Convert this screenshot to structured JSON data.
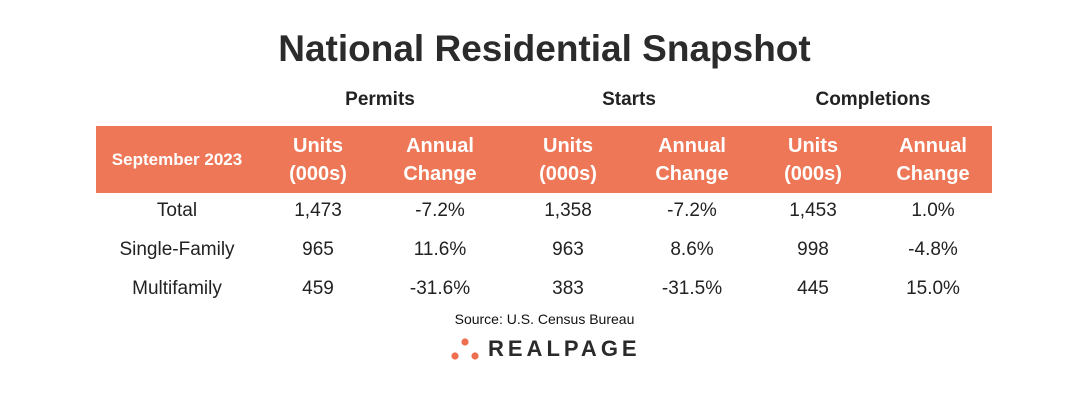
{
  "title": "National Residential Snapshot",
  "accent_color": "#ED7757",
  "chart_data": {
    "type": "table",
    "title": "National Residential Snapshot",
    "groups": [
      "Permits",
      "Starts",
      "Completions"
    ],
    "row_header": "September 2023",
    "columns": [
      "Units (000s)",
      "Annual Change",
      "Units (000s)",
      "Annual Change",
      "Units (000s)",
      "Annual Change"
    ],
    "column_lines": [
      [
        "Units",
        "(000s)"
      ],
      [
        "Annual",
        "Change"
      ],
      [
        "Units",
        "(000s)"
      ],
      [
        "Annual",
        "Change"
      ],
      [
        "Units",
        "(000s)"
      ],
      [
        "Annual",
        "Change"
      ]
    ],
    "rows": [
      {
        "label": "Total",
        "values": [
          "1,473",
          "-7.2%",
          "1,358",
          "-7.2%",
          "1,453",
          "1.0%"
        ]
      },
      {
        "label": "Single-Family",
        "values": [
          "965",
          "11.6%",
          "963",
          "8.6%",
          "998",
          "-4.8%"
        ]
      },
      {
        "label": "Multifamily",
        "values": [
          "459",
          "-31.6%",
          "383",
          "-31.5%",
          "445",
          "15.0%"
        ]
      }
    ]
  },
  "source": "Source: U.S. Census Bureau",
  "logo": {
    "text": "REALPAGE",
    "dot_color": "#EE6F4F"
  }
}
